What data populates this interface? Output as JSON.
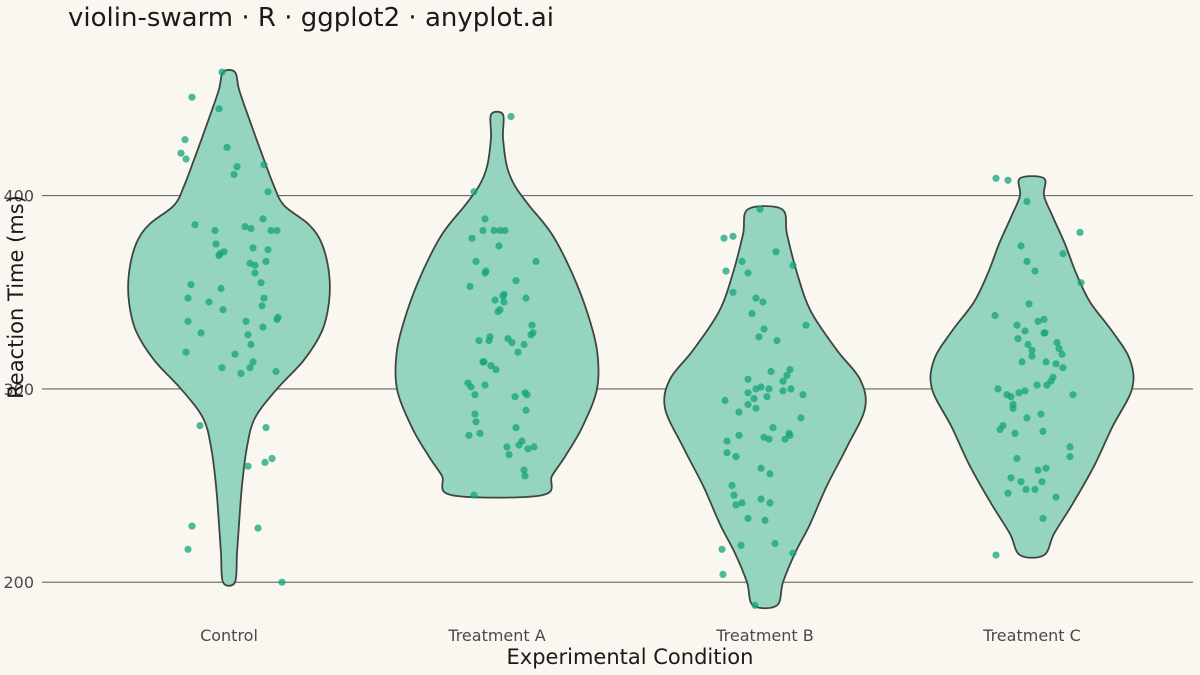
{
  "chart_data": {
    "type": "violin-swarm",
    "title": "violin-swarm · R · ggplot2 · anyplot.ai",
    "xlabel": "Experimental Condition",
    "ylabel": "Reaction Time (ms)",
    "ylim": [
      183,
      478
    ],
    "yticks": [
      200,
      300,
      400
    ],
    "grid": "horizontal major lines",
    "colors": {
      "violin_fill": "#95D5BF",
      "violin_stroke": "#3D463F",
      "points": "#16A37B",
      "background": "#FAF7F1"
    },
    "categories": [
      "Control",
      "Treatment A",
      "Treatment B",
      "Treatment C"
    ],
    "violins": [
      {
        "category": "Control",
        "min": 200,
        "max": 464,
        "profile": [
          [
            200,
            0.06
          ],
          [
            215,
            0.08
          ],
          [
            230,
            0.1
          ],
          [
            250,
            0.13
          ],
          [
            270,
            0.18
          ],
          [
            285,
            0.26
          ],
          [
            300,
            0.48
          ],
          [
            315,
            0.75
          ],
          [
            330,
            0.93
          ],
          [
            345,
            1.0
          ],
          [
            360,
            1.0
          ],
          [
            375,
            0.93
          ],
          [
            385,
            0.8
          ],
          [
            395,
            0.55
          ],
          [
            405,
            0.45
          ],
          [
            420,
            0.34
          ],
          [
            440,
            0.2
          ],
          [
            455,
            0.1
          ],
          [
            464,
            0.06
          ]
        ],
        "points": [
          [
            464,
            -0.07
          ],
          [
            451,
            -0.37
          ],
          [
            445,
            -0.1
          ],
          [
            429,
            -0.44
          ],
          [
            425,
            -0.02
          ],
          [
            422,
            -0.48
          ],
          [
            419,
            -0.43
          ],
          [
            416,
            0.35
          ],
          [
            415,
            0.08
          ],
          [
            411,
            0.05
          ],
          [
            402,
            0.39
          ],
          [
            388,
            0.34
          ],
          [
            385,
            -0.34
          ],
          [
            384,
            0.16
          ],
          [
            383,
            0.22
          ],
          [
            382,
            0.42
          ],
          [
            382,
            0.48
          ],
          [
            382,
            -0.14
          ],
          [
            375,
            -0.13
          ],
          [
            373,
            0.24
          ],
          [
            372,
            0.39
          ],
          [
            371,
            -0.05
          ],
          [
            370,
            -0.09
          ],
          [
            369,
            -0.1
          ],
          [
            366,
            0.37
          ],
          [
            365,
            0.21
          ],
          [
            364,
            0.26
          ],
          [
            360,
            0.26
          ],
          [
            355,
            0.32
          ],
          [
            354,
            -0.38
          ],
          [
            352,
            -0.08
          ],
          [
            347,
            0.35
          ],
          [
            347,
            -0.41
          ],
          [
            345,
            -0.2
          ],
          [
            343,
            0.33
          ],
          [
            341,
            -0.06
          ],
          [
            337,
            0.49
          ],
          [
            336,
            0.48
          ],
          [
            335,
            0.17
          ],
          [
            335,
            -0.41
          ],
          [
            332,
            0.34
          ],
          [
            329,
            -0.28
          ],
          [
            328,
            0.19
          ],
          [
            323,
            0.22
          ],
          [
            319,
            -0.43
          ],
          [
            318,
            0.06
          ],
          [
            314,
            0.24
          ],
          [
            311,
            -0.07
          ],
          [
            311,
            0.21
          ],
          [
            309,
            0.47
          ],
          [
            308,
            0.12
          ],
          [
            281,
            -0.29
          ],
          [
            280,
            0.37
          ],
          [
            264,
            0.43
          ],
          [
            262,
            0.36
          ],
          [
            260,
            0.19
          ],
          [
            229,
            -0.37
          ],
          [
            228,
            0.29
          ],
          [
            217,
            -0.41
          ],
          [
            200,
            0.53
          ]
        ]
      },
      {
        "category": "Treatment A",
        "min": 245,
        "max": 442,
        "profile": [
          [
            245,
            0.45
          ],
          [
            255,
            0.55
          ],
          [
            265,
            0.68
          ],
          [
            280,
            0.85
          ],
          [
            300,
            1.0
          ],
          [
            320,
            1.0
          ],
          [
            340,
            0.9
          ],
          [
            360,
            0.75
          ],
          [
            380,
            0.55
          ],
          [
            395,
            0.32
          ],
          [
            405,
            0.18
          ],
          [
            415,
            0.1
          ],
          [
            430,
            0.06
          ],
          [
            442,
            0.06
          ]
        ],
        "points": [
          [
            441,
            0.14
          ],
          [
            402,
            -0.23
          ],
          [
            388,
            -0.12
          ],
          [
            382,
            -0.03
          ],
          [
            382,
            -0.14
          ],
          [
            382,
            0.08
          ],
          [
            382,
            0.03
          ],
          [
            378,
            -0.25
          ],
          [
            374,
            0.02
          ],
          [
            366,
            -0.21
          ],
          [
            366,
            0.39
          ],
          [
            361,
            -0.11
          ],
          [
            360,
            -0.12
          ],
          [
            356,
            0.19
          ],
          [
            353,
            -0.27
          ],
          [
            349,
            0.07
          ],
          [
            348,
            0.06
          ],
          [
            347,
            0.29
          ],
          [
            346,
            -0.02
          ],
          [
            345,
            0.07
          ],
          [
            341,
            0.03
          ],
          [
            340,
            0.01
          ],
          [
            333,
            0.35
          ],
          [
            329,
            0.36
          ],
          [
            328,
            0.34
          ],
          [
            327,
            -0.07
          ],
          [
            326,
            0.11
          ],
          [
            325,
            -0.18
          ],
          [
            325,
            -0.08
          ],
          [
            324,
            0.15
          ],
          [
            323,
            0.27
          ],
          [
            319,
            0.21
          ],
          [
            314,
            -0.14
          ],
          [
            314,
            -0.13
          ],
          [
            312,
            -0.06
          ],
          [
            310,
            -0.01
          ],
          [
            303,
            -0.29
          ],
          [
            302,
            -0.12
          ],
          [
            301,
            -0.26
          ],
          [
            298,
            0.28
          ],
          [
            297,
            -0.22
          ],
          [
            297,
            0.3
          ],
          [
            296,
            0.18
          ],
          [
            289,
            0.29
          ],
          [
            287,
            -0.22
          ],
          [
            283,
            -0.21
          ],
          [
            280,
            0.19
          ],
          [
            277,
            -0.17
          ],
          [
            276,
            -0.28
          ],
          [
            273,
            0.25
          ],
          [
            271,
            0.22
          ],
          [
            270,
            0.1
          ],
          [
            270,
            0.37
          ],
          [
            269,
            0.31
          ],
          [
            266,
            0.12
          ],
          [
            258,
            0.27
          ],
          [
            255,
            0.28
          ],
          [
            245,
            -0.23
          ]
        ]
      },
      {
        "category": "Treatment B",
        "min": 188,
        "max": 393,
        "profile": [
          [
            188,
            0.12
          ],
          [
            200,
            0.18
          ],
          [
            215,
            0.3
          ],
          [
            230,
            0.45
          ],
          [
            250,
            0.62
          ],
          [
            270,
            0.82
          ],
          [
            290,
            1.0
          ],
          [
            305,
            0.95
          ],
          [
            320,
            0.72
          ],
          [
            340,
            0.46
          ],
          [
            360,
            0.32
          ],
          [
            380,
            0.22
          ],
          [
            393,
            0.17
          ]
        ],
        "points": [
          [
            393,
            -0.05
          ],
          [
            378,
            -0.41
          ],
          [
            379,
            -0.32
          ],
          [
            371,
            0.11
          ],
          [
            366,
            -0.23
          ],
          [
            364,
            0.28
          ],
          [
            361,
            -0.39
          ],
          [
            360,
            -0.17
          ],
          [
            350,
            -0.32
          ],
          [
            347,
            -0.09
          ],
          [
            345,
            -0.02
          ],
          [
            339,
            -0.13
          ],
          [
            333,
            0.41
          ],
          [
            331,
            -0.01
          ],
          [
            327,
            -0.06
          ],
          [
            325,
            0.12
          ],
          [
            310,
            0.25
          ],
          [
            309,
            0.06
          ],
          [
            307,
            0.22
          ],
          [
            305,
            -0.17
          ],
          [
            304,
            0.18
          ],
          [
            301,
            -0.04
          ],
          [
            300,
            -0.09
          ],
          [
            300,
            0.04
          ],
          [
            300,
            0.26
          ],
          [
            299,
            0.18
          ],
          [
            298,
            -0.17
          ],
          [
            297,
            0.38
          ],
          [
            296,
            0.02
          ],
          [
            295,
            -0.11
          ],
          [
            294,
            -0.4
          ],
          [
            292,
            -0.17
          ],
          [
            290,
            -0.09
          ],
          [
            288,
            -0.26
          ],
          [
            285,
            0.36
          ],
          [
            280,
            0.08
          ],
          [
            277,
            0.24
          ],
          [
            276,
            0.25
          ],
          [
            276,
            -0.26
          ],
          [
            275,
            -0.01
          ],
          [
            274,
            0.04
          ],
          [
            274,
            0.2
          ],
          [
            273,
            -0.38
          ],
          [
            267,
            -0.38
          ],
          [
            265,
            -0.29
          ],
          [
            259,
            -0.04
          ],
          [
            256,
            0.05
          ],
          [
            250,
            -0.33
          ],
          [
            245,
            -0.31
          ],
          [
            243,
            -0.04
          ],
          [
            241,
            -0.23
          ],
          [
            241,
            0.05
          ],
          [
            240,
            -0.29
          ],
          [
            233,
            -0.17
          ],
          [
            232,
            0.0
          ],
          [
            220,
            0.1
          ],
          [
            219,
            -0.24
          ],
          [
            217,
            -0.43
          ],
          [
            215,
            0.28
          ],
          [
            204,
            -0.42
          ],
          [
            188,
            -0.1
          ]
        ]
      },
      {
        "category": "Treatment C",
        "min": 214,
        "max": 409,
        "profile": [
          [
            214,
            0.12
          ],
          [
            225,
            0.22
          ],
          [
            240,
            0.4
          ],
          [
            260,
            0.62
          ],
          [
            280,
            0.8
          ],
          [
            300,
            1.0
          ],
          [
            315,
            0.98
          ],
          [
            330,
            0.8
          ],
          [
            345,
            0.58
          ],
          [
            360,
            0.44
          ],
          [
            375,
            0.33
          ],
          [
            390,
            0.2
          ],
          [
            400,
            0.12
          ],
          [
            409,
            0.12
          ]
        ],
        "points": [
          [
            409,
            -0.36
          ],
          [
            408,
            -0.24
          ],
          [
            397,
            -0.05
          ],
          [
            381,
            0.48
          ],
          [
            374,
            -0.11
          ],
          [
            370,
            0.31
          ],
          [
            366,
            -0.05
          ],
          [
            361,
            0.03
          ],
          [
            355,
            0.49
          ],
          [
            344,
            -0.03
          ],
          [
            338,
            -0.37
          ],
          [
            336,
            0.12
          ],
          [
            335,
            0.06
          ],
          [
            333,
            -0.15
          ],
          [
            330,
            -0.07
          ],
          [
            329,
            0.12
          ],
          [
            329,
            0.13
          ],
          [
            326,
            -0.14
          ],
          [
            324,
            0.25
          ],
          [
            323,
            -0.04
          ],
          [
            321,
            0.27
          ],
          [
            320,
            0.0
          ],
          [
            318,
            0.3
          ],
          [
            317,
            0.0
          ],
          [
            314,
            -0.1
          ],
          [
            314,
            0.14
          ],
          [
            313,
            0.24
          ],
          [
            311,
            0.31
          ],
          [
            306,
            0.21
          ],
          [
            304,
            0.19
          ],
          [
            302,
            0.15
          ],
          [
            302,
            0.05
          ],
          [
            300,
            -0.34
          ],
          [
            299,
            -0.07
          ],
          [
            298,
            -0.13
          ],
          [
            297,
            -0.25
          ],
          [
            297,
            0.41
          ],
          [
            296,
            -0.21
          ],
          [
            292,
            -0.19
          ],
          [
            290,
            -0.19
          ],
          [
            287,
            0.09
          ],
          [
            285,
            -0.05
          ],
          [
            281,
            -0.29
          ],
          [
            279,
            -0.32
          ],
          [
            278,
            0.11
          ],
          [
            277,
            -0.17
          ],
          [
            270,
            0.38
          ],
          [
            265,
            0.38
          ],
          [
            264,
            -0.15
          ],
          [
            259,
            0.14
          ],
          [
            258,
            0.06
          ],
          [
            254,
            -0.21
          ],
          [
            252,
            0.1
          ],
          [
            252,
            -0.11
          ],
          [
            248,
            0.03
          ],
          [
            248,
            -0.06
          ],
          [
            246,
            -0.24
          ],
          [
            244,
            0.24
          ],
          [
            233,
            0.11
          ],
          [
            214,
            -0.36
          ]
        ]
      }
    ]
  }
}
